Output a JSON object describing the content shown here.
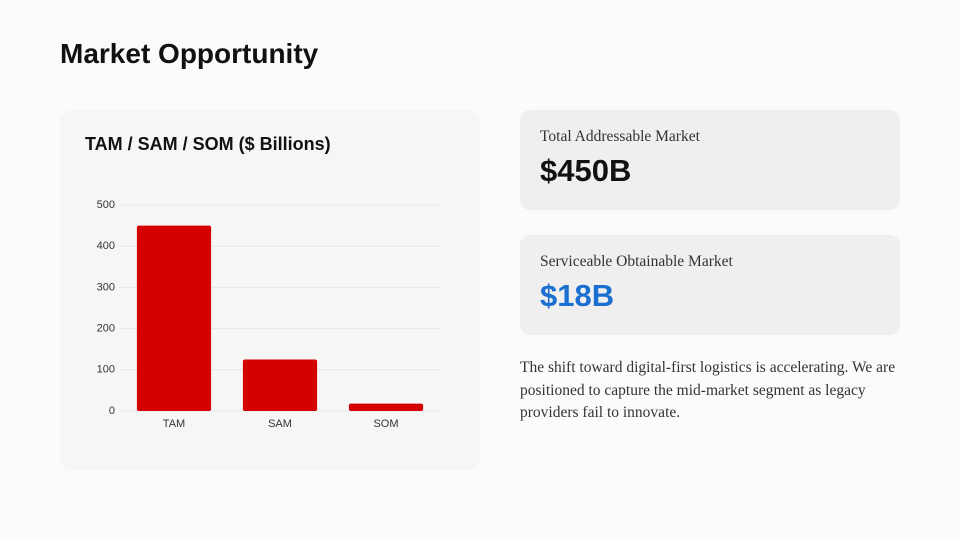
{
  "header": {
    "title": "Market Opportunity"
  },
  "chart_data": {
    "type": "bar",
    "title": "TAM / SAM / SOM ($ Billions)",
    "categories": [
      "TAM",
      "SAM",
      "SOM"
    ],
    "values": [
      450,
      125,
      18
    ],
    "color": "#d40000",
    "ylim": [
      0,
      500
    ],
    "yticks": [
      0,
      100,
      200,
      300,
      400,
      500
    ],
    "grid": true
  },
  "cards": [
    {
      "label": "Total Addressable Market",
      "value": "$450B",
      "color": "#111111"
    },
    {
      "label": "Serviceable Obtainable Market",
      "value": "$18B",
      "color": "#1a6fd0"
    }
  ],
  "body": "The shift toward digital-first logistics is accelerating. We are positioned to capture the mid-market segment as legacy providers fail to innovate."
}
